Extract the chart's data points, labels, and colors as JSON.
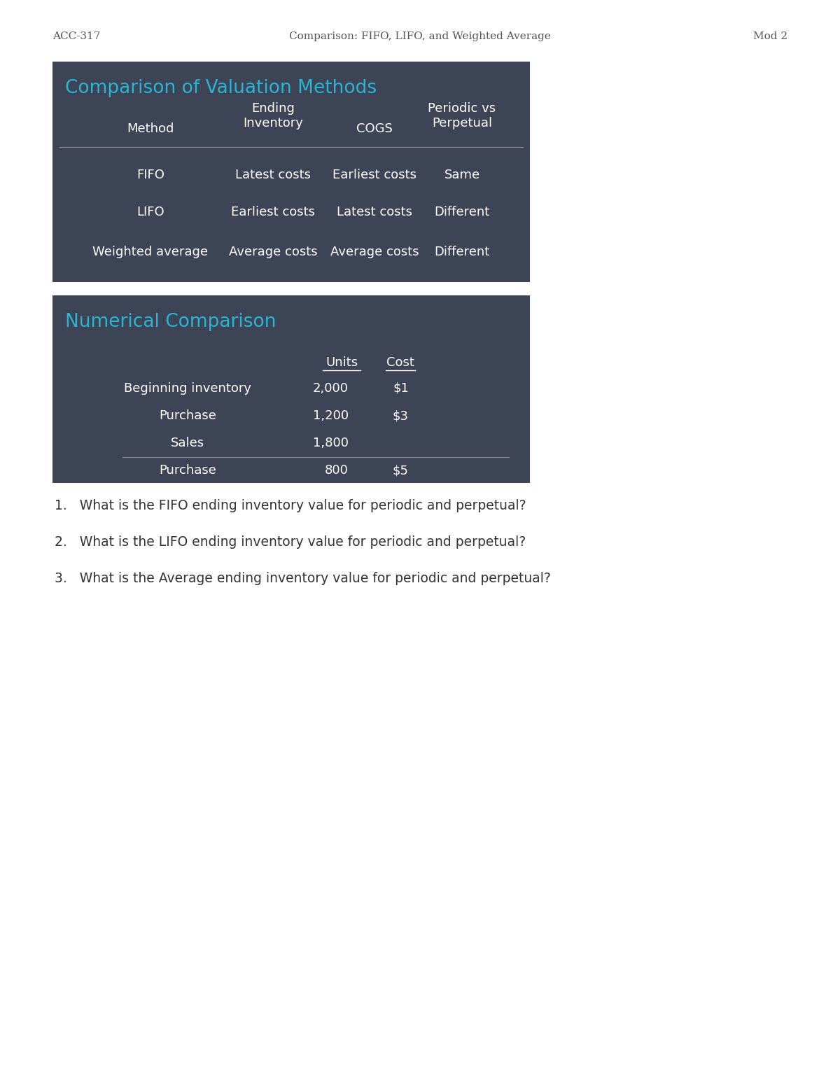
{
  "page_header_left": "ACC-317",
  "page_header_center": "Comparison: FIFO, LIFO, and Weighted Average",
  "page_header_right": "Mod 2",
  "box1_title": "Comparison of Valuation Methods",
  "box1_rows": [
    [
      "FIFO",
      "Latest costs",
      "Earliest costs",
      "Same"
    ],
    [
      "LIFO",
      "Earliest costs",
      "Latest costs",
      "Different"
    ],
    [
      "Weighted average",
      "Average costs",
      "Average costs",
      "Different"
    ]
  ],
  "box2_title": "Numerical Comparison",
  "box2_rows": [
    [
      "Beginning inventory",
      "2,000",
      "$1"
    ],
    [
      "Purchase",
      "1,200",
      "$3"
    ],
    [
      "Sales",
      "1,800",
      ""
    ],
    [
      "Purchase",
      "800",
      "$5"
    ]
  ],
  "questions": [
    "1.   What is the FIFO ending inventory value for periodic and perpetual?",
    "2.   What is the LIFO ending inventory value for periodic and perpetual?",
    "3.   What is the Average ending inventory value for periodic and perpetual?"
  ],
  "box_bg_color": "#3d4455",
  "box_title_color": "#29b6d5",
  "box_text_color": "#ffffff",
  "header_text_color": "#555555",
  "question_text_color": "#333333",
  "page_bg_color": "#ffffff",
  "separator_color": "#888899"
}
